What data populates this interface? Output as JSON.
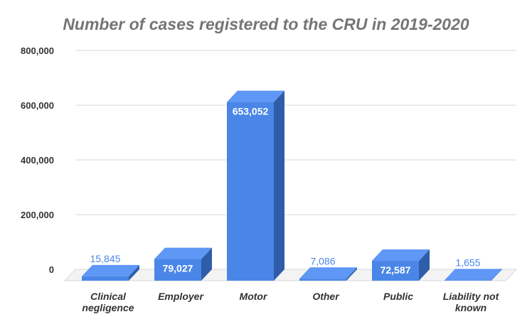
{
  "chart_data": {
    "type": "bar",
    "title": "Number of cases registered to the CRU in 2019-2020",
    "xlabel": "",
    "ylabel": "",
    "categories": [
      [
        "Clinical",
        "negligence"
      ],
      [
        "Employer"
      ],
      [
        "Motor"
      ],
      [
        "Other"
      ],
      [
        "Public"
      ],
      [
        "Liability not",
        "known"
      ]
    ],
    "values": [
      15845,
      79027,
      653052,
      7086,
      72587,
      1655
    ],
    "data_labels": [
      "15,845",
      "79,027",
      "653,052",
      "7,086",
      "72,587",
      "1,655"
    ],
    "ylim": [
      0,
      800000
    ],
    "y_ticks": [
      0,
      200000,
      400000,
      600000,
      800000
    ],
    "y_tick_labels": [
      "0",
      "200,000",
      "400,000",
      "600,000",
      "800,000"
    ],
    "grid": true,
    "legend": "none",
    "style": "3d",
    "colors": {
      "bar_front": "#4a86e8",
      "bar_top": "#5e97f5",
      "bar_side": "#2f5da8",
      "label_inside": "#ffffff",
      "label_outside": "#4a86e8"
    }
  }
}
